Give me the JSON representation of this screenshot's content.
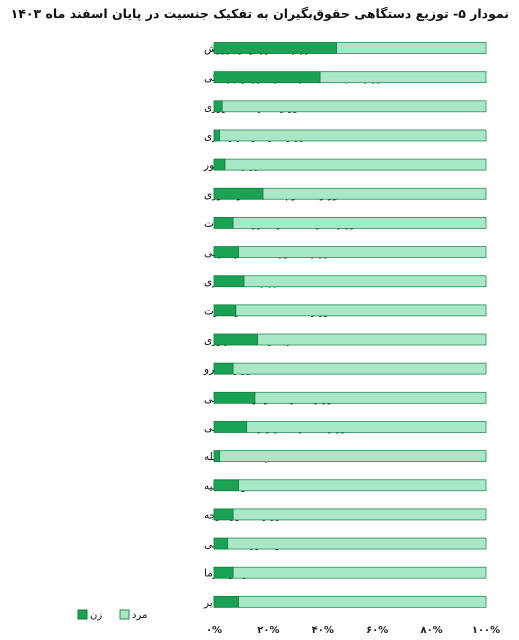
{
  "chart_data": {
    "type": "bar",
    "orientation": "horizontal",
    "stacked": true,
    "title": "نمودار ۵- توزیع دستگاهی حقوق‌بگیران به تفکیک جنسیت در پایان اسفند ماه ۱۴۰۳",
    "categories": [
      "وزارت آموزش و پرورش",
      "وزارت بهداشت، درمان و آموزش پزشکی",
      "وزارت جهاد کشاورزی",
      "وزارت راه و شهرسازی",
      "وزارت کشور",
      "وزارت علوم تحقیقات و فناوری",
      "وزارت ارتباطات و فناوری اطلاعات",
      "وزارت اموراقتصادی و دارائی",
      "وزارت دادگستری",
      "وزارت صنعت،معدن و تجارت",
      "نهاد ریاست جمهوری",
      "وزارت نیرو",
      "وزارت فرهنگ و ارشاداسلامی",
      "وزارت تعاون،کار و رفاه اجتماعی",
      "سازمان‌های منحله",
      "قوه قضائیه",
      "وزارت امورخارجه",
      "مجلس شورای اسلامی",
      "خویش فرما",
      "سایر"
    ],
    "series": [
      {
        "name": "زن",
        "color": "#1aa354",
        "values": [
          45,
          39,
          3,
          2,
          4,
          18,
          7,
          9,
          11,
          8,
          16,
          7,
          15,
          12,
          2,
          9,
          7,
          5,
          7,
          9
        ]
      },
      {
        "name": "مرد",
        "color": "#a8e8c6",
        "values": [
          55,
          61,
          97,
          98,
          96,
          82,
          93,
          91,
          89,
          92,
          84,
          93,
          85,
          88,
          98,
          91,
          93,
          95,
          93,
          91
        ]
      }
    ],
    "xlim": [
      0,
      100
    ],
    "x_ticks": [
      "۰%",
      "۲۰%",
      "۴۰%",
      "۶۰%",
      "۸۰%",
      "۱۰۰%"
    ],
    "legend_position": "bottom-left",
    "grid": false
  }
}
